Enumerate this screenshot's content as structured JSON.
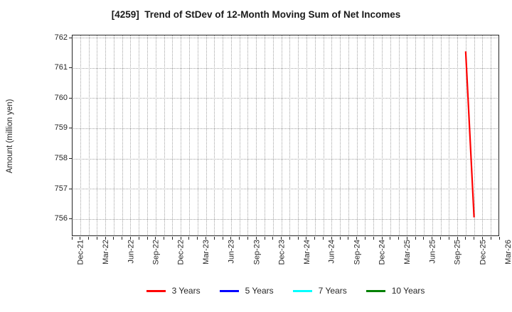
{
  "chart_data": {
    "type": "line",
    "title": "[4259]  Trend of StDev of 12-Month Moving Sum of Net Incomes",
    "ylabel": "Amount (million yen)",
    "x_start": "Dec-21",
    "x_end": "Mar-26",
    "x_minor_unit": "month",
    "x_tick_labels": [
      "Dec-21",
      "Mar-22",
      "Jun-22",
      "Sep-22",
      "Dec-22",
      "Mar-23",
      "Jun-23",
      "Sep-23",
      "Dec-23",
      "Mar-24",
      "Jun-24",
      "Sep-24",
      "Dec-24",
      "Mar-25",
      "Jun-25",
      "Sep-25",
      "Dec-25",
      "Mar-26"
    ],
    "y_ticks": [
      756,
      757,
      758,
      759,
      760,
      761,
      762
    ],
    "ylim": [
      755.43,
      762.1
    ],
    "grid": {
      "vertical": "monthly, dotted",
      "horizontal": "at y ticks, dotted",
      "color": "#a3a3a3"
    },
    "axis_color": "#262626",
    "legend_position": "bottom-center",
    "series": [
      {
        "name": "3 Years",
        "color": "#ff0000",
        "points": [
          [
            "Nov-25",
            761.55
          ],
          [
            "Dec-25",
            756.05
          ]
        ]
      },
      {
        "name": "5 Years",
        "color": "#0000ff",
        "points": []
      },
      {
        "name": "7 Years",
        "color": "#00ffff",
        "points": []
      },
      {
        "name": "10 Years",
        "color": "#008000",
        "points": []
      }
    ]
  }
}
